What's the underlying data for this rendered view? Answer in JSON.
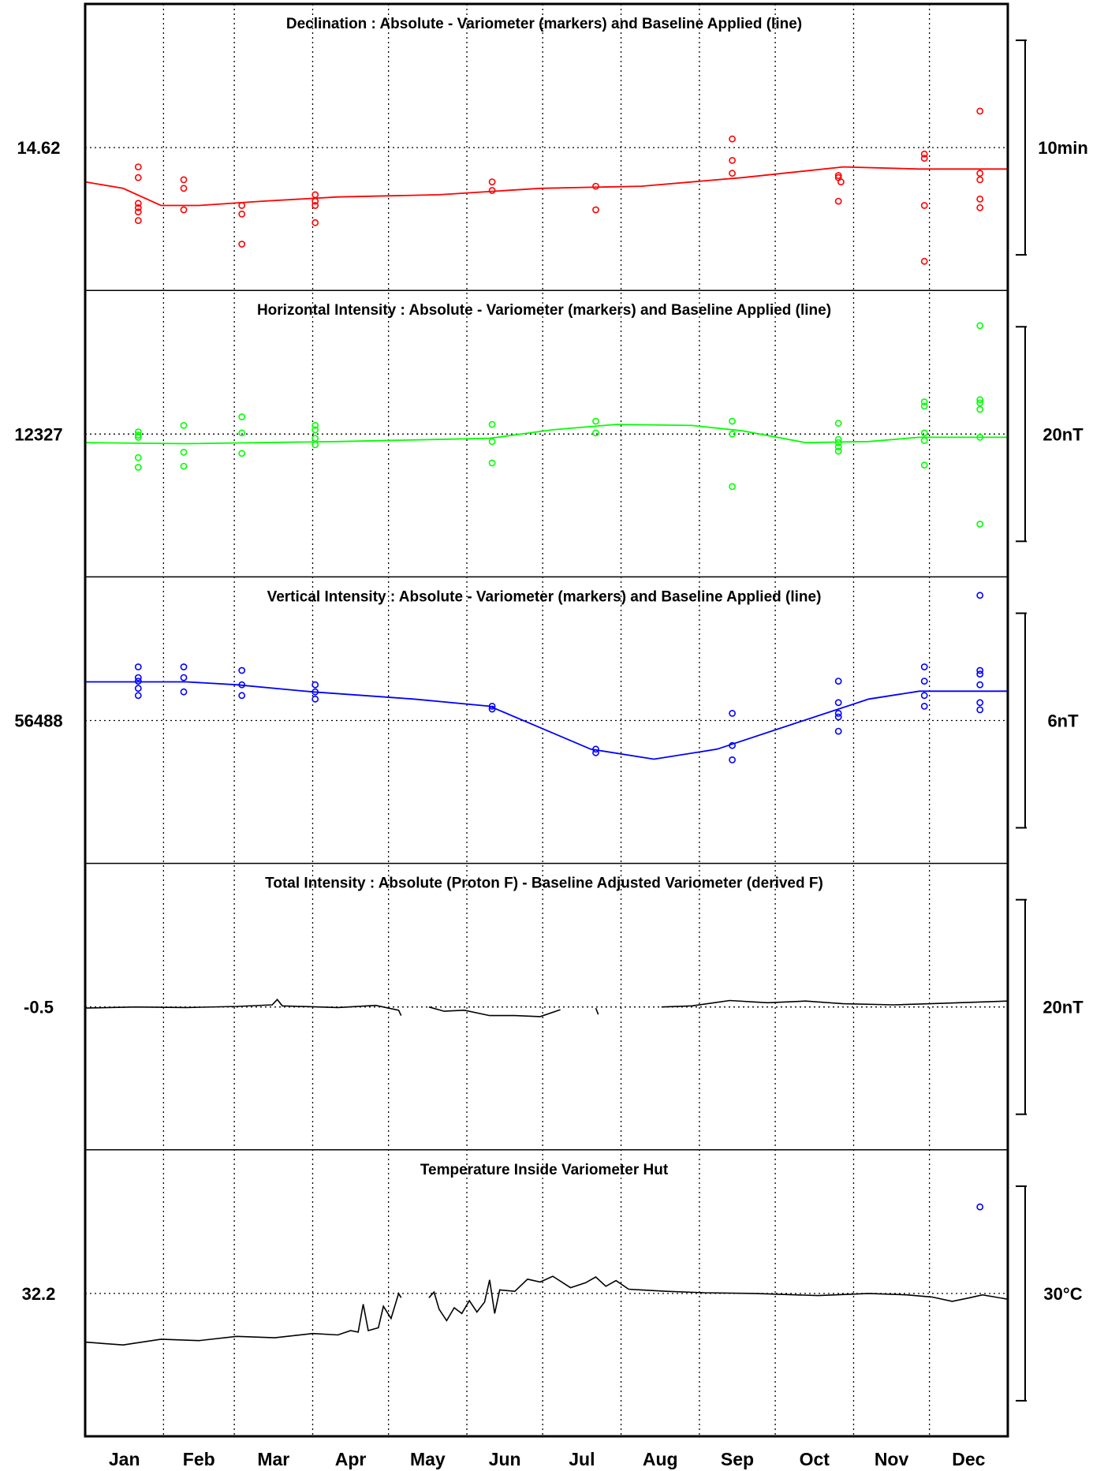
{
  "chart_data": {
    "type": "line",
    "x_axis": {
      "months": [
        "Jan",
        "Feb",
        "Mar",
        "Apr",
        "May",
        "Jun",
        "Jul",
        "Aug",
        "Sep",
        "Oct",
        "Nov",
        "Dec"
      ],
      "range_days": [
        0,
        365
      ]
    },
    "grid": true,
    "panels": [
      {
        "id": "declination",
        "title": "Declination : Absolute - Variometer (markers) and Baseline Applied (line)",
        "reference_value": "14.62",
        "scale_label": "10min",
        "scale_span": 10,
        "color": "#ff0000",
        "line": [
          [
            0,
            -1.6
          ],
          [
            15,
            -1.9
          ],
          [
            30,
            -2.7
          ],
          [
            45,
            -2.7
          ],
          [
            70,
            -2.5
          ],
          [
            100,
            -2.3
          ],
          [
            140,
            -2.2
          ],
          [
            180,
            -1.9
          ],
          [
            220,
            -1.8
          ],
          [
            260,
            -1.4
          ],
          [
            300,
            -0.9
          ],
          [
            330,
            -1.0
          ],
          [
            365,
            -1.0
          ]
        ],
        "markers": [
          [
            21,
            -0.9
          ],
          [
            21,
            -1.4
          ],
          [
            21,
            -2.6
          ],
          [
            21,
            -2.8
          ],
          [
            21,
            -3.0
          ],
          [
            21,
            -3.4
          ],
          [
            39,
            -1.5
          ],
          [
            39,
            -1.9
          ],
          [
            39,
            -2.9
          ],
          [
            62,
            -2.7
          ],
          [
            62,
            -3.1
          ],
          [
            62,
            -4.5
          ],
          [
            91,
            -2.2
          ],
          [
            91,
            -2.5
          ],
          [
            91,
            -2.7
          ],
          [
            91,
            -3.5
          ],
          [
            161,
            -1.6
          ],
          [
            161,
            -2.0
          ],
          [
            202,
            -1.8
          ],
          [
            202,
            -2.9
          ],
          [
            256,
            0.4
          ],
          [
            256,
            -0.6
          ],
          [
            256,
            -1.2
          ],
          [
            298,
            -1.3
          ],
          [
            298,
            -1.4
          ],
          [
            299,
            -1.6
          ],
          [
            298,
            -2.5
          ],
          [
            332,
            -0.3
          ],
          [
            332,
            -0.5
          ],
          [
            332,
            -2.7
          ],
          [
            332,
            -5.3
          ],
          [
            354,
            1.7
          ],
          [
            354,
            -1.2
          ],
          [
            354,
            -1.5
          ],
          [
            354,
            -2.4
          ],
          [
            354,
            -2.8
          ]
        ]
      },
      {
        "id": "horizontal",
        "title": "Horizontal Intensity : Absolute - Variometer (markers) and Baseline Applied (line)",
        "reference_value": "12327",
        "scale_label": "20nT",
        "scale_span": 20,
        "color": "#00ff00",
        "line": [
          [
            0,
            -0.8
          ],
          [
            40,
            -0.9
          ],
          [
            100,
            -0.7
          ],
          [
            160,
            -0.4
          ],
          [
            185,
            0.4
          ],
          [
            210,
            0.9
          ],
          [
            240,
            0.8
          ],
          [
            260,
            0.3
          ],
          [
            285,
            -0.8
          ],
          [
            310,
            -0.7
          ],
          [
            330,
            -0.3
          ],
          [
            365,
            -0.3
          ]
        ],
        "markers": [
          [
            21,
            0.2
          ],
          [
            21,
            -0.1
          ],
          [
            21,
            -0.3
          ],
          [
            21,
            -2.2
          ],
          [
            21,
            -3.1
          ],
          [
            39,
            0.8
          ],
          [
            39,
            -1.7
          ],
          [
            39,
            -3.0
          ],
          [
            62,
            1.6
          ],
          [
            62,
            0.1
          ],
          [
            62,
            -1.8
          ],
          [
            91,
            0.8
          ],
          [
            91,
            0.4
          ],
          [
            91,
            -0.4
          ],
          [
            91,
            -1.0
          ],
          [
            161,
            0.9
          ],
          [
            161,
            -0.7
          ],
          [
            161,
            -2.7
          ],
          [
            202,
            1.2
          ],
          [
            202,
            0.1
          ],
          [
            256,
            1.2
          ],
          [
            256,
            0.0
          ],
          [
            256,
            -4.9
          ],
          [
            298,
            1.0
          ],
          [
            298,
            -0.5
          ],
          [
            298,
            -0.8
          ],
          [
            298,
            -1.2
          ],
          [
            298,
            -1.6
          ],
          [
            332,
            3.0
          ],
          [
            332,
            2.6
          ],
          [
            332,
            0.1
          ],
          [
            332,
            -0.6
          ],
          [
            332,
            -2.9
          ],
          [
            354,
            10.1
          ],
          [
            354,
            3.2
          ],
          [
            354,
            2.9
          ],
          [
            354,
            2.3
          ],
          [
            354,
            -0.3
          ],
          [
            354,
            -8.4
          ]
        ]
      },
      {
        "id": "vertical",
        "title": "Vertical Intensity : Absolute - Variometer (markers) and Baseline Applied (line)",
        "reference_value": "56488",
        "scale_label": "6nT",
        "scale_span": 6,
        "color": "#0000ff",
        "line": [
          [
            0,
            1.08
          ],
          [
            40,
            1.08
          ],
          [
            60,
            1.0
          ],
          [
            90,
            0.8
          ],
          [
            130,
            0.6
          ],
          [
            160,
            0.4
          ],
          [
            180,
            -0.2
          ],
          [
            200,
            -0.8
          ],
          [
            225,
            -1.08
          ],
          [
            250,
            -0.8
          ],
          [
            280,
            -0.1
          ],
          [
            310,
            0.6
          ],
          [
            330,
            0.82
          ],
          [
            365,
            0.82
          ]
        ],
        "markers": [
          [
            21,
            1.5
          ],
          [
            21,
            1.2
          ],
          [
            21,
            1.1
          ],
          [
            21,
            0.9
          ],
          [
            21,
            0.7
          ],
          [
            39,
            1.5
          ],
          [
            39,
            1.2
          ],
          [
            39,
            0.8
          ],
          [
            62,
            1.4
          ],
          [
            62,
            1.0
          ],
          [
            62,
            0.7
          ],
          [
            91,
            1.0
          ],
          [
            91,
            0.8
          ],
          [
            91,
            0.6
          ],
          [
            161,
            0.4
          ],
          [
            161,
            0.32
          ],
          [
            202,
            -0.8
          ],
          [
            202,
            -0.9
          ],
          [
            256,
            0.2
          ],
          [
            256,
            -0.7
          ],
          [
            256,
            -1.1
          ],
          [
            298,
            1.1
          ],
          [
            298,
            0.5
          ],
          [
            298,
            0.2
          ],
          [
            298,
            0.1
          ],
          [
            298,
            -0.3
          ],
          [
            332,
            1.5
          ],
          [
            332,
            1.1
          ],
          [
            332,
            0.7
          ],
          [
            332,
            0.4
          ],
          [
            354,
            3.5
          ],
          [
            354,
            1.4
          ],
          [
            354,
            1.3
          ],
          [
            354,
            1.0
          ],
          [
            354,
            0.5
          ],
          [
            354,
            0.3
          ]
        ]
      },
      {
        "id": "total",
        "title": "Total Intensity : Absolute (Proton F) - Baseline Adjusted Variometer (derived F)",
        "reference_value": "-0.5",
        "scale_label": "20nT",
        "scale_span": 20,
        "color": "#000000",
        "segments": [
          [
            [
              0,
              -0.1
            ],
            [
              20,
              0.0
            ],
            [
              40,
              -0.05
            ],
            [
              60,
              0.05
            ],
            [
              74,
              0.2
            ],
            [
              76,
              0.7
            ],
            [
              78,
              0.1
            ],
            [
              100,
              -0.05
            ],
            [
              115,
              0.15
            ],
            [
              124,
              -0.3
            ],
            [
              125,
              -0.8
            ]
          ],
          [
            [
              136,
              0.0
            ],
            [
              142,
              -0.4
            ],
            [
              150,
              -0.3
            ],
            [
              160,
              -0.8
            ],
            [
              170,
              -0.8
            ],
            [
              180,
              -0.9
            ],
            [
              188,
              -0.25
            ]
          ],
          [
            [
              202,
              -0.1
            ],
            [
              203,
              -0.7
            ]
          ],
          [
            [
              228,
              0.0
            ],
            [
              240,
              0.1
            ],
            [
              255,
              0.6
            ],
            [
              270,
              0.4
            ],
            [
              285,
              0.55
            ],
            [
              300,
              0.3
            ],
            [
              320,
              0.2
            ],
            [
              340,
              0.35
            ],
            [
              365,
              0.55
            ]
          ]
        ]
      },
      {
        "id": "temperature",
        "title": "Temperature Inside Variometer Hut",
        "reference_value": "32.2",
        "scale_label": "30°C",
        "scale_span": 30,
        "color": "#000000",
        "segments": [
          [
            [
              0,
              -6.8
            ],
            [
              15,
              -7.2
            ],
            [
              30,
              -6.4
            ],
            [
              45,
              -6.6
            ],
            [
              60,
              -6.0
            ],
            [
              75,
              -6.2
            ],
            [
              90,
              -5.6
            ],
            [
              100,
              -5.8
            ],
            [
              105,
              -5.2
            ],
            [
              108,
              -5.4
            ],
            [
              110,
              -1.5
            ],
            [
              112,
              -5.2
            ],
            [
              116,
              -4.8
            ],
            [
              118,
              -1.8
            ],
            [
              121,
              -3.5
            ],
            [
              124,
              0.0
            ],
            [
              125,
              -0.6
            ]
          ],
          [
            [
              136,
              -0.6
            ],
            [
              138,
              0.2
            ],
            [
              140,
              -2.2
            ],
            [
              143,
              -3.8
            ],
            [
              146,
              -2.0
            ],
            [
              149,
              -2.8
            ],
            [
              152,
              -1.0
            ],
            [
              155,
              -2.6
            ],
            [
              158,
              -1.2
            ],
            [
              160,
              1.9
            ],
            [
              162,
              -2.8
            ],
            [
              164,
              0.5
            ],
            [
              170,
              0.3
            ],
            [
              175,
              2.0
            ],
            [
              180,
              1.6
            ],
            [
              185,
              2.4
            ],
            [
              192,
              0.8
            ],
            [
              198,
              1.5
            ],
            [
              202,
              2.3
            ],
            [
              206,
              1.0
            ],
            [
              210,
              1.8
            ],
            [
              215,
              0.6
            ],
            [
              220,
              0.5
            ],
            [
              230,
              0.3
            ],
            [
              245,
              0.1
            ],
            [
              265,
              0.0
            ],
            [
              290,
              -0.3
            ],
            [
              310,
              0.0
            ],
            [
              325,
              -0.2
            ],
            [
              335,
              -0.5
            ],
            [
              343,
              -1.1
            ],
            [
              350,
              -0.6
            ],
            [
              355,
              -0.2
            ],
            [
              365,
              -0.8
            ]
          ]
        ],
        "markers": [
          [
            354,
            12.1
          ]
        ]
      }
    ]
  }
}
